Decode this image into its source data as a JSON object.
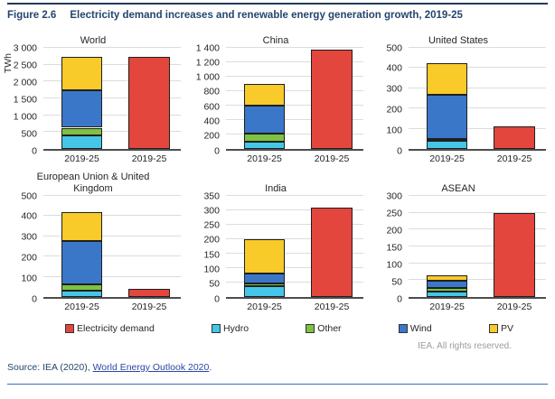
{
  "figure": {
    "label": "Figure 2.6",
    "title": "Electricity demand increases and renewable energy generation growth, 2019-25"
  },
  "axis_unit": "TWh",
  "colors": {
    "Electricity demand": "#e2463d",
    "Hydro": "#45c6e8",
    "Other": "#7dc242",
    "Wind": "#3b77c8",
    "PV": "#f8ca2a",
    "header_navy": "#24466e",
    "link_blue": "#2d47a5",
    "gridline": "#dcdcdc"
  },
  "legend": [
    "Electricity demand",
    "Hydro",
    "Other",
    "Wind",
    "PV"
  ],
  "chart_data": [
    {
      "type": "bar",
      "title": "World",
      "ylabel": "TWh",
      "ylim": [
        0,
        3000
      ],
      "ytick_step": 500,
      "grid": true,
      "bars": [
        {
          "category": "2019-25",
          "stack": [
            {
              "name": "Hydro",
              "value": 390
            },
            {
              "name": "Other",
              "value": 240
            },
            {
              "name": "Wind",
              "value": 1120
            },
            {
              "name": "PV",
              "value": 980
            }
          ]
        },
        {
          "category": "2019-25",
          "stack": [
            {
              "name": "Electricity demand",
              "value": 2730
            }
          ]
        }
      ]
    },
    {
      "type": "bar",
      "title": "China",
      "ylabel": "",
      "ylim": [
        0,
        1400
      ],
      "ytick_step": 200,
      "grid": true,
      "bars": [
        {
          "category": "2019-25",
          "stack": [
            {
              "name": "Hydro",
              "value": 100
            },
            {
              "name": "Other",
              "value": 110
            },
            {
              "name": "Wind",
              "value": 390
            },
            {
              "name": "PV",
              "value": 300
            }
          ]
        },
        {
          "category": "2019-25",
          "stack": [
            {
              "name": "Electricity demand",
              "value": 1370
            }
          ]
        }
      ]
    },
    {
      "type": "bar",
      "title": "United States",
      "ylabel": "",
      "ylim": [
        0,
        500
      ],
      "ytick_step": 100,
      "grid": true,
      "bars": [
        {
          "category": "2019-25",
          "stack": [
            {
              "name": "Hydro",
              "value": 40
            },
            {
              "name": "Other",
              "value": 10
            },
            {
              "name": "Wind",
              "value": 220
            },
            {
              "name": "PV",
              "value": 155
            }
          ]
        },
        {
          "category": "2019-25",
          "stack": [
            {
              "name": "Electricity demand",
              "value": 110
            }
          ]
        }
      ]
    },
    {
      "type": "bar",
      "title": "European Union & United Kingdom",
      "ylabel": "",
      "ylim": [
        0,
        500
      ],
      "ytick_step": 100,
      "grid": true,
      "bars": [
        {
          "category": "2019-25",
          "stack": [
            {
              "name": "Hydro",
              "value": 33
            },
            {
              "name": "Other",
              "value": 30
            },
            {
              "name": "Wind",
              "value": 215
            },
            {
              "name": "PV",
              "value": 140
            }
          ]
        },
        {
          "category": "2019-25",
          "stack": [
            {
              "name": "Electricity demand",
              "value": 40
            }
          ]
        }
      ]
    },
    {
      "type": "bar",
      "title": "India",
      "ylabel": "",
      "ylim": [
        0,
        350
      ],
      "ytick_step": 50,
      "grid": true,
      "bars": [
        {
          "category": "2019-25",
          "stack": [
            {
              "name": "Hydro",
              "value": 36
            },
            {
              "name": "Other",
              "value": 10
            },
            {
              "name": "Wind",
              "value": 34
            },
            {
              "name": "PV",
              "value": 120
            }
          ]
        },
        {
          "category": "2019-25",
          "stack": [
            {
              "name": "Electricity demand",
              "value": 310
            }
          ]
        }
      ]
    },
    {
      "type": "bar",
      "title": "ASEAN",
      "ylabel": "",
      "ylim": [
        0,
        300
      ],
      "ytick_step": 50,
      "grid": true,
      "bars": [
        {
          "category": "2019-25",
          "stack": [
            {
              "name": "Hydro",
              "value": 15
            },
            {
              "name": "Other",
              "value": 11
            },
            {
              "name": "Wind",
              "value": 21
            },
            {
              "name": "PV",
              "value": 17
            }
          ]
        },
        {
          "category": "2019-25",
          "stack": [
            {
              "name": "Electricity demand",
              "value": 250
            }
          ]
        }
      ]
    }
  ],
  "footer": {
    "rights": "IEA. All rights reserved.",
    "source_prefix": "Source: IEA (2020), ",
    "source_link": "World Energy Outlook 2020",
    "source_suffix": "."
  }
}
